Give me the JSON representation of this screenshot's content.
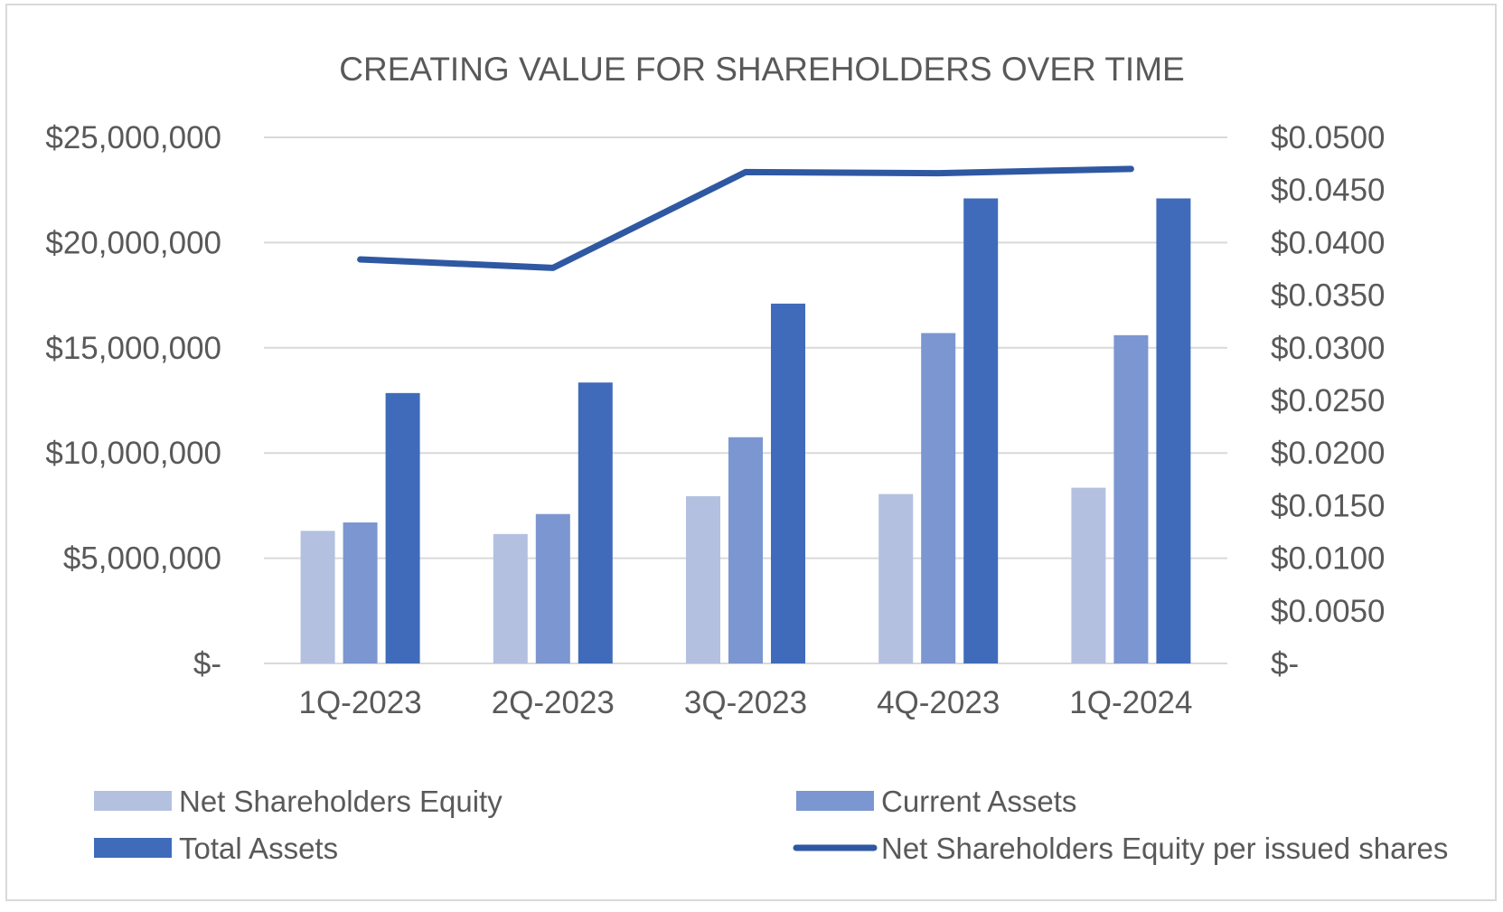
{
  "chart_data": {
    "type": "bar",
    "title": "CREATING VALUE FOR SHAREHOLDERS OVER TIME",
    "categories": [
      "1Q-2023",
      "2Q-2023",
      "3Q-2023",
      "4Q-2023",
      "1Q-2024"
    ],
    "series": [
      {
        "name": "Net Shareholders Equity",
        "type": "bar",
        "axis": "left",
        "color": "#b4c0e0",
        "values": [
          6300000,
          6150000,
          7950000,
          8050000,
          8350000
        ]
      },
      {
        "name": "Current Assets",
        "type": "bar",
        "axis": "left",
        "color": "#7b96d0",
        "values": [
          6700000,
          7100000,
          10750000,
          15700000,
          15600000
        ]
      },
      {
        "name": "Total Assets",
        "type": "bar",
        "axis": "left",
        "color": "#3f6bba",
        "values": [
          12850000,
          13350000,
          17100000,
          22100000,
          22100000
        ]
      },
      {
        "name": "Net Shareholders Equity per issued shares",
        "type": "line",
        "axis": "right",
        "color": "#2f58a3",
        "values": [
          0.0384,
          0.0376,
          0.0467,
          0.0466,
          0.047
        ]
      }
    ],
    "y_left": {
      "min": 0,
      "max": 25000000,
      "step": 5000000,
      "tick_labels": [
        "$-",
        "$5,000,000",
        "$10,000,000",
        "$15,000,000",
        "$20,000,000",
        "$25,000,000"
      ]
    },
    "y_right": {
      "min": 0,
      "max": 0.05,
      "step": 0.005,
      "tick_labels": [
        "$-",
        "$0.0050",
        "$0.0100",
        "$0.0150",
        "$0.0200",
        "$0.0250",
        "$0.0300",
        "$0.0350",
        "$0.0400",
        "$0.0450",
        "$0.0500"
      ]
    },
    "grid": true,
    "legend_position": "bottom"
  }
}
